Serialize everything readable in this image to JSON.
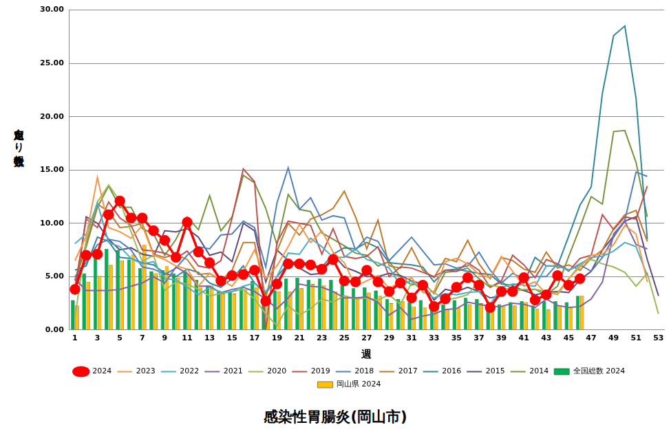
{
  "chart_data": {
    "type": "bar",
    "title": "感染性胃腸炎(岡山市)",
    "x_label": "週",
    "y_label": "定点当たり報告数",
    "categories": [
      "1",
      null,
      "3",
      null,
      "5",
      null,
      "7",
      null,
      "9",
      null,
      "11",
      null,
      "13",
      null,
      "15",
      null,
      "17",
      null,
      "19",
      null,
      "21",
      null,
      "23",
      null,
      "25",
      null,
      "27",
      null,
      "29",
      null,
      "31",
      null,
      "33",
      null,
      "35",
      null,
      "37",
      null,
      "39",
      null,
      "41",
      null,
      "43",
      null,
      "45",
      null,
      "47",
      null,
      "49",
      null,
      "51",
      null,
      "53"
    ],
    "ylim": [
      0,
      30
    ],
    "yticks": [
      {
        "value": 0,
        "label": "0.00"
      },
      {
        "value": 5,
        "label": "5.00"
      },
      {
        "value": 10,
        "label": "10.00"
      },
      {
        "value": 15,
        "label": "15.00"
      },
      {
        "value": 20,
        "label": "20.00"
      },
      {
        "value": 25,
        "label": "25.00"
      },
      {
        "value": 30,
        "label": "30.00"
      }
    ],
    "grid": true,
    "legend": "bottom",
    "series": [
      {
        "name": "全国総数 2024",
        "type": "bar",
        "color": "#00b050",
        "values": [
          2.8,
          5.3,
          7.4,
          7.6,
          7.5,
          6.6,
          5.8,
          5.5,
          5.6,
          5.3,
          5.5,
          4.7,
          4.2,
          3.7,
          3.6,
          3.9,
          4.6,
          2.6,
          3.7,
          4.8,
          4.9,
          4.7,
          4.8,
          4.7,
          4.2,
          3.9,
          4.0,
          3.7,
          2.9,
          2.9,
          2.6,
          2.8,
          2.1,
          2.4,
          2.8,
          3.0,
          2.9,
          2.2,
          2.4,
          2.6,
          2.7,
          2.3,
          2.7,
          2.7,
          2.6,
          3.2,
          null,
          null,
          null,
          null,
          null,
          null,
          null
        ]
      },
      {
        "name": "岡山県 2024",
        "type": "bar",
        "color": "#ffc000",
        "values": [
          2.3,
          4.5,
          5.1,
          6.1,
          6.5,
          7.1,
          8.0,
          5.3,
          6.0,
          4.9,
          5.2,
          4.0,
          4.2,
          3.4,
          3.4,
          3.8,
          4.0,
          2.2,
          3.6,
          3.6,
          3.9,
          4.3,
          4.2,
          3.6,
          3.2,
          3.1,
          3.5,
          3.2,
          2.5,
          2.7,
          2.2,
          2.1,
          2.0,
          1.9,
          2.1,
          2.4,
          2.5,
          2.0,
          2.2,
          2.3,
          2.6,
          2.0,
          1.9,
          2.3,
          2.2,
          3.2,
          null,
          null,
          null,
          null,
          null,
          null,
          null
        ]
      },
      {
        "name": "2014",
        "type": "line",
        "color": "#77933c",
        "marker": "none",
        "values": [
          4.6,
          7.8,
          11.5,
          13.5,
          11.5,
          11.5,
          9.5,
          9.0,
          7.0,
          8.5,
          10.6,
          9.4,
          12.6,
          9.3,
          10.6,
          14.5,
          13.8,
          11.4,
          8.0,
          12.7,
          11.3,
          11.1,
          9.1,
          8.5,
          7.9,
          7.2,
          7.0,
          6.0,
          6.4,
          5.0,
          4.2,
          4.5,
          3.4,
          5.4,
          5.5,
          5.8,
          4.8,
          4.0,
          4.5,
          3.8,
          3.7,
          3.8,
          3.3,
          4.1,
          6.9,
          9.6,
          12.5,
          11.8,
          18.6,
          18.7,
          15.7,
          10.6,
          null
        ]
      },
      {
        "name": "2015",
        "type": "line",
        "color": "#5f497a",
        "marker": "none",
        "values": [
          3.3,
          10.6,
          10.0,
          8.5,
          7.5,
          7.7,
          7.1,
          6.9,
          9.3,
          9.2,
          9.5,
          8.7,
          7.0,
          7.3,
          6.4,
          10.0,
          9.3,
          4.5,
          7.5,
          6.5,
          5.8,
          5.2,
          5.3,
          7.1,
          5.9,
          5.5,
          5.0,
          5.0,
          5.3,
          5.1,
          4.6,
          4.3,
          2.8,
          3.8,
          3.6,
          4.0,
          3.6,
          3.0,
          3.2,
          4.1,
          3.7,
          3.3,
          3.5,
          3.6,
          3.5,
          4.7,
          5.5,
          7.5,
          8.8,
          10.2,
          10.6,
          6.6,
          3.2
        ]
      },
      {
        "name": "2016",
        "type": "line",
        "color": "#31859c",
        "marker": "none",
        "values": [
          5.6,
          6.0,
          8.7,
          8.3,
          6.8,
          6.7,
          6.3,
          6.1,
          5.3,
          5.0,
          5.7,
          5.4,
          4.4,
          4.0,
          4.8,
          6.0,
          4.4,
          3.4,
          5.0,
          6.2,
          6.5,
          6.1,
          5.9,
          7.1,
          7.7,
          7.6,
          8.2,
          7.7,
          6.3,
          6.2,
          6.1,
          5.9,
          4.5,
          5.6,
          5.7,
          5.5,
          5.3,
          5.2,
          4.3,
          4.2,
          4.4,
          6.8,
          6.0,
          6.0,
          8.8,
          11.7,
          13.4,
          22.2,
          27.6,
          28.5,
          21.7,
          8.5,
          null
        ]
      },
      {
        "name": "2017",
        "type": "line",
        "color": "#c0782a",
        "marker": "none",
        "values": [
          4.7,
          8.1,
          11.8,
          11.1,
          9.6,
          9.7,
          10.0,
          7.1,
          6.8,
          7.1,
          6.6,
          5.2,
          5.3,
          4.6,
          5.6,
          8.2,
          8.2,
          3.0,
          7.4,
          10.0,
          8.9,
          10.4,
          10.8,
          11.4,
          13.0,
          10.6,
          7.6,
          10.3,
          6.0,
          5.8,
          7.7,
          5.6,
          4.9,
          6.7,
          6.4,
          8.4,
          6.2,
          4.8,
          6.8,
          6.5,
          5.7,
          5.4,
          7.3,
          5.8,
          6.1,
          5.6,
          6.7,
          7.5,
          9.5,
          10.8,
          11.2,
          8.3,
          null
        ]
      },
      {
        "name": "2018",
        "type": "line",
        "color": "#4f81bd",
        "marker": "none",
        "values": [
          5.0,
          6.3,
          8.0,
          8.5,
          8.3,
          7.5,
          5.9,
          5.7,
          5.2,
          5.8,
          7.0,
          7.8,
          7.6,
          8.9,
          9.0,
          10.2,
          9.6,
          5.9,
          11.9,
          15.2,
          11.3,
          12.4,
          10.3,
          10.7,
          10.5,
          7.5,
          8.7,
          8.3,
          6.5,
          7.6,
          8.7,
          7.4,
          6.1,
          6.2,
          5.8,
          6.0,
          7.3,
          5.6,
          4.4,
          5.3,
          4.8,
          5.0,
          5.0,
          6.2,
          5.6,
          6.1,
          5.5,
          6.8,
          8.7,
          10.3,
          14.8,
          14.4,
          null
        ]
      },
      {
        "name": "2019",
        "type": "line",
        "color": "#c0504d",
        "marker": "none",
        "values": [
          4.0,
          10.4,
          9.6,
          12.0,
          10.5,
          9.8,
          7.5,
          7.4,
          7.2,
          6.7,
          7.4,
          6.0,
          5.8,
          6.5,
          10.5,
          15.1,
          13.9,
          0.0,
          8.2,
          10.2,
          10.0,
          9.8,
          7.1,
          9.5,
          6.9,
          6.7,
          6.9,
          7.8,
          5.0,
          5.9,
          5.8,
          5.4,
          5.0,
          5.6,
          5.5,
          6.3,
          5.6,
          4.0,
          4.6,
          7.0,
          6.1,
          4.9,
          6.6,
          6.2,
          5.5,
          6.7,
          7.0,
          10.8,
          9.4,
          10.6,
          10.4,
          13.5,
          null
        ]
      },
      {
        "name": "2020",
        "type": "line",
        "color": "#9bbb59",
        "marker": "none",
        "values": [
          1.2,
          8.4,
          12.0,
          13.6,
          12.1,
          9.2,
          6.4,
          7.0,
          3.7,
          4.5,
          4.3,
          3.8,
          3.2,
          3.4,
          3.6,
          3.8,
          2.9,
          1.5,
          0.4,
          2.3,
          1.4,
          2.0,
          2.9,
          2.6,
          3.2,
          2.9,
          3.0,
          2.8,
          3.3,
          2.4,
          4.4,
          4.3,
          3.5,
          2.8,
          3.0,
          3.3,
          4.6,
          4.2,
          4.0,
          3.7,
          3.8,
          3.8,
          3.6,
          3.3,
          4.8,
          6.1,
          6.6,
          6.2,
          5.9,
          5.4,
          4.1,
          5.3,
          1.5
        ]
      },
      {
        "name": "2021",
        "type": "line",
        "color": "#8064a2",
        "marker": "none",
        "values": [
          4.8,
          3.7,
          3.7,
          3.7,
          3.8,
          4.1,
          4.4,
          5.0,
          4.4,
          5.9,
          5.3,
          4.1,
          4.1,
          3.5,
          3.8,
          4.0,
          3.6,
          2.9,
          2.0,
          3.0,
          4.3,
          4.1,
          4.0,
          3.6,
          3.0,
          3.0,
          3.1,
          2.6,
          1.4,
          2.1,
          1.0,
          1.3,
          1.5,
          1.9,
          2.0,
          2.6,
          2.4,
          2.2,
          2.2,
          2.5,
          2.4,
          2.1,
          2.9,
          2.3,
          2.1,
          2.2,
          2.9,
          4.5,
          9.0,
          10.2,
          8.0,
          7.6,
          null
        ]
      },
      {
        "name": "2022",
        "type": "line",
        "color": "#4bacc6",
        "marker": "none",
        "values": [
          8.1,
          9.0,
          11.9,
          8.2,
          7.8,
          6.7,
          6.2,
          6.4,
          4.8,
          4.7,
          4.0,
          3.3,
          4.0,
          3.5,
          3.6,
          4.1,
          4.4,
          3.6,
          5.0,
          7.2,
          7.1,
          8.6,
          7.8,
          6.8,
          6.8,
          7.6,
          6.6,
          6.3,
          5.8,
          4.2,
          4.6,
          3.6,
          3.0,
          3.4,
          3.3,
          3.5,
          3.6,
          2.4,
          4.0,
          4.3,
          4.2,
          4.1,
          6.0,
          6.0,
          5.6,
          6.2,
          6.8,
          6.9,
          7.4,
          8.2,
          7.8,
          5.1,
          null
        ]
      },
      {
        "name": "2023",
        "type": "line",
        "color": "#f79646",
        "marker": "none",
        "values": [
          6.5,
          8.8,
          14.3,
          9.6,
          9.2,
          8.6,
          9.8,
          7.0,
          6.6,
          6.0,
          5.7,
          4.1,
          5.3,
          4.7,
          4.1,
          5.5,
          7.5,
          4.8,
          6.0,
          7.8,
          9.9,
          8.2,
          9.3,
          7.3,
          6.3,
          4.1,
          4.6,
          5.1,
          3.9,
          4.5,
          4.9,
          3.5,
          3.6,
          6.4,
          6.7,
          6.2,
          5.2,
          4.9,
          6.9,
          5.5,
          4.1,
          4.5,
          3.4,
          3.5,
          4.8,
          5.9,
          7.0,
          7.1,
          8.0,
          9.8,
          9.0,
          4.5,
          null
        ]
      },
      {
        "name": "2024",
        "type": "line",
        "color": "#ff0000",
        "marker": "circle",
        "values": [
          3.8,
          7.0,
          7.1,
          10.8,
          12.1,
          10.5,
          10.5,
          9.3,
          8.4,
          6.8,
          10.1,
          7.3,
          6.3,
          4.6,
          5.1,
          5.2,
          5.6,
          2.7,
          4.3,
          6.2,
          6.2,
          6.1,
          5.7,
          6.6,
          4.6,
          4.5,
          5.6,
          4.5,
          3.6,
          4.4,
          3.0,
          4.2,
          2.2,
          2.9,
          4.0,
          4.9,
          4.2,
          2.1,
          3.6,
          3.6,
          4.9,
          2.8,
          3.3,
          5.1,
          4.2,
          4.8,
          null,
          null,
          null,
          null,
          null,
          null,
          null
        ]
      }
    ]
  }
}
